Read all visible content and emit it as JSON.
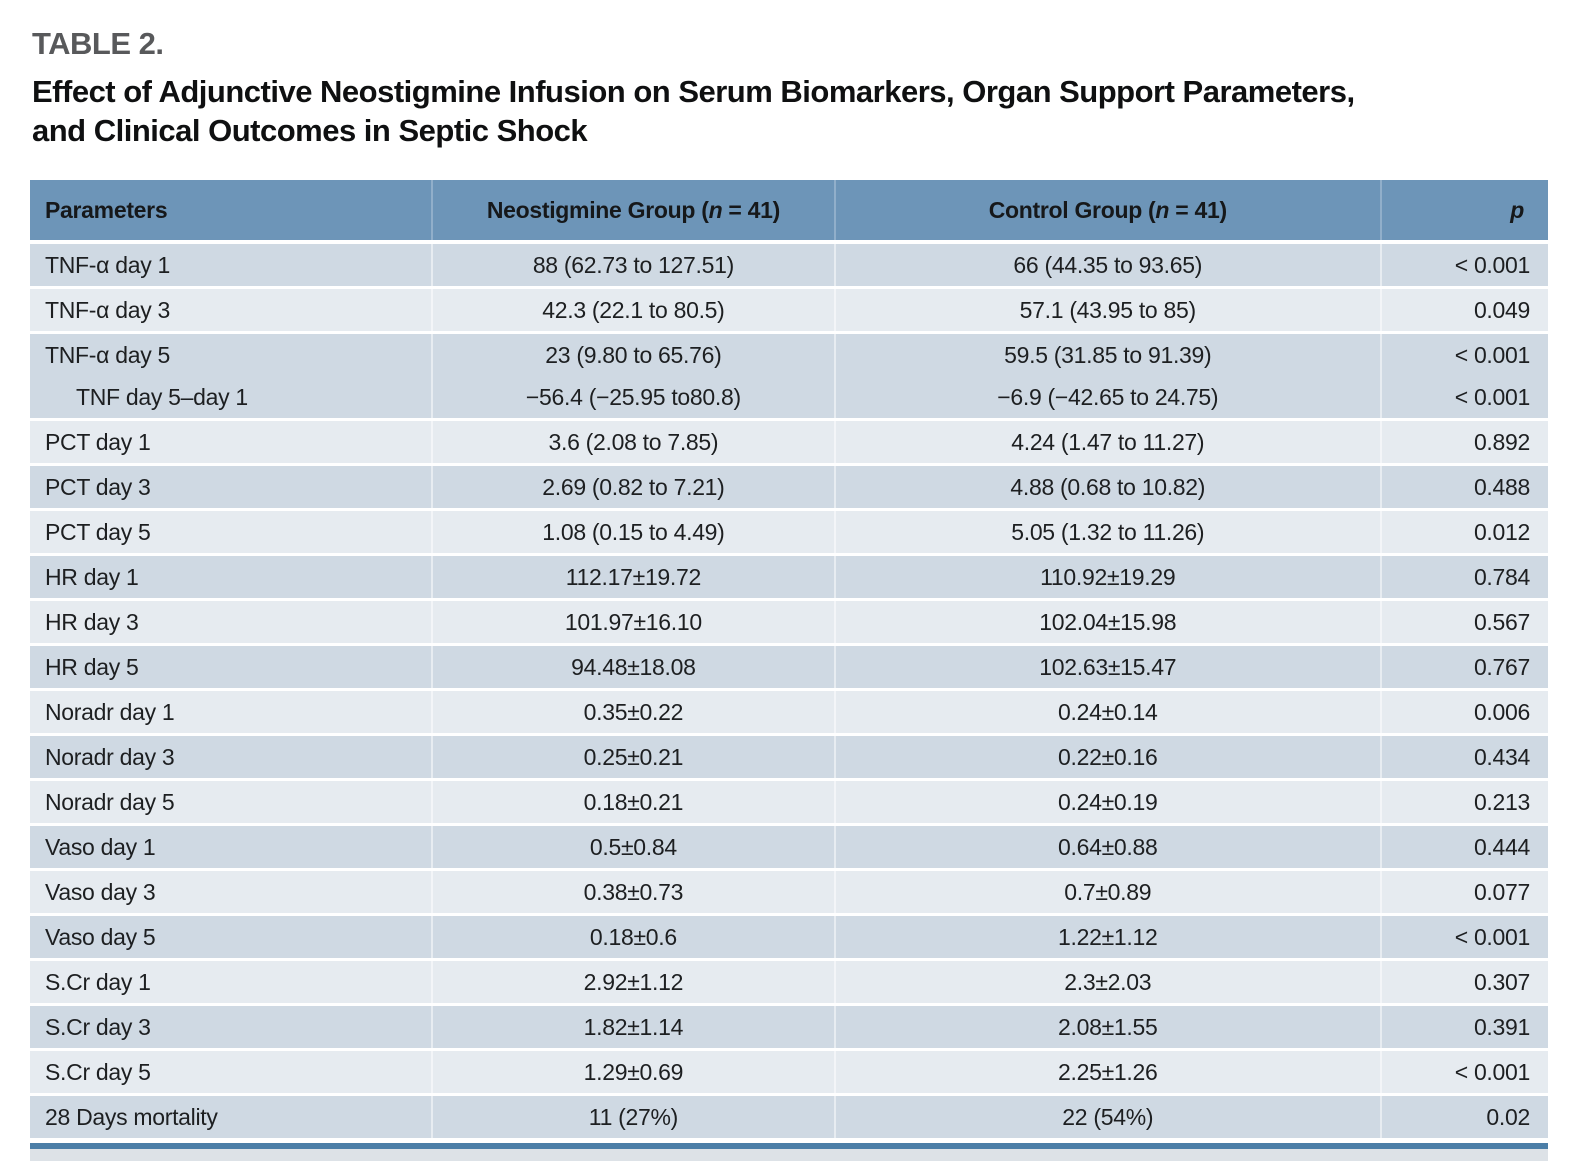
{
  "page": {
    "table_label": "TABLE 2.",
    "title": "Effect of Adjunctive Neostigmine Infusion on Serum Biomarkers, Organ Support Parameters, and Clinical Outcomes in Septic Shock"
  },
  "colors": {
    "header_bg": "#6d95b8",
    "row_medium_blue": "#cfd9e3",
    "row_light_blue": "#e6ebf0",
    "bottom_rule": "#4b7ea7",
    "table_label_gray": "#58595b"
  },
  "table": {
    "columns": [
      {
        "text": "Parameters"
      },
      {
        "pre": "Neostigmine Group (",
        "var": "n",
        "post": " = 41)"
      },
      {
        "pre": "Control Group (",
        "var": "n",
        "post": " = 41)"
      },
      {
        "var": "p"
      }
    ],
    "rows": [
      {
        "param": "TNF-α day 1",
        "neo": "88 (62.73 to 127.51)",
        "control": "66 (44.35 to 93.65)",
        "p": "< 0.001",
        "shade": "dark"
      },
      {
        "param": "TNF-α day 3",
        "neo": "42.3 (22.1 to 80.5)",
        "control": "57.1 (43.95 to 85)",
        "p": "0.049",
        "shade": "light"
      },
      {
        "param": "TNF-α day 5",
        "neo": "23 (9.80 to 65.76)",
        "control": "59.5 (31.85 to 91.39)",
        "p": "< 0.001",
        "shade": "dark",
        "merge_next": true
      },
      {
        "param": "TNF day 5–day 1",
        "neo": "−56.4 (−25.95 to80.8)",
        "control": "−6.9 (−42.65 to 24.75)",
        "p": "< 0.001",
        "shade": "dark",
        "indent": true
      },
      {
        "param": "PCT day 1",
        "neo": "3.6 (2.08 to 7.85)",
        "control": "4.24 (1.47 to 11.27)",
        "p": "0.892",
        "shade": "light"
      },
      {
        "param": "PCT day 3",
        "neo": "2.69 (0.82 to 7.21)",
        "control": "4.88 (0.68 to 10.82)",
        "p": "0.488",
        "shade": "dark"
      },
      {
        "param": "PCT day 5",
        "neo": "1.08 (0.15 to 4.49)",
        "control": "5.05 (1.32 to 11.26)",
        "p": "0.012",
        "shade": "light"
      },
      {
        "param": "HR day 1",
        "neo": "112.17±19.72",
        "control": "110.92±19.29",
        "p": "0.784",
        "shade": "dark"
      },
      {
        "param": "HR day 3",
        "neo": "101.97±16.10",
        "control": "102.04±15.98",
        "p": "0.567",
        "shade": "light"
      },
      {
        "param": "HR day 5",
        "neo": "94.48±18.08",
        "control": "102.63±15.47",
        "p": "0.767",
        "shade": "dark"
      },
      {
        "param": "Noradr day 1",
        "neo": "0.35±0.22",
        "control": "0.24±0.14",
        "p": "0.006",
        "shade": "light"
      },
      {
        "param": "Noradr day 3",
        "neo": "0.25±0.21",
        "control": "0.22±0.16",
        "p": "0.434",
        "shade": "dark"
      },
      {
        "param": "Noradr day 5",
        "neo": "0.18±0.21",
        "control": "0.24±0.19",
        "p": "0.213",
        "shade": "light"
      },
      {
        "param": "Vaso day 1",
        "neo": "0.5±0.84",
        "control": "0.64±0.88",
        "p": "0.444",
        "shade": "dark"
      },
      {
        "param": "Vaso day 3",
        "neo": "0.38±0.73",
        "control": "0.7±0.89",
        "p": "0.077",
        "shade": "light"
      },
      {
        "param": "Vaso day 5",
        "neo": "0.18±0.6",
        "control": "1.22±1.12",
        "p": "< 0.001",
        "shade": "dark"
      },
      {
        "param": "S.Cr day 1",
        "neo": "2.92±1.12",
        "control": "2.3±2.03",
        "p": "0.307",
        "shade": "light"
      },
      {
        "param": "S.Cr day 3",
        "neo": "1.82±1.14",
        "control": "2.08±1.55",
        "p": "0.391",
        "shade": "dark"
      },
      {
        "param": "S.Cr day 5",
        "neo": "1.29±0.69",
        "control": "2.25±1.26",
        "p": "< 0.001",
        "shade": "light"
      },
      {
        "param": "28 Days mortality",
        "neo": "11 (27%)",
        "control": "22 (54%)",
        "p": "0.02",
        "shade": "dark"
      }
    ]
  }
}
